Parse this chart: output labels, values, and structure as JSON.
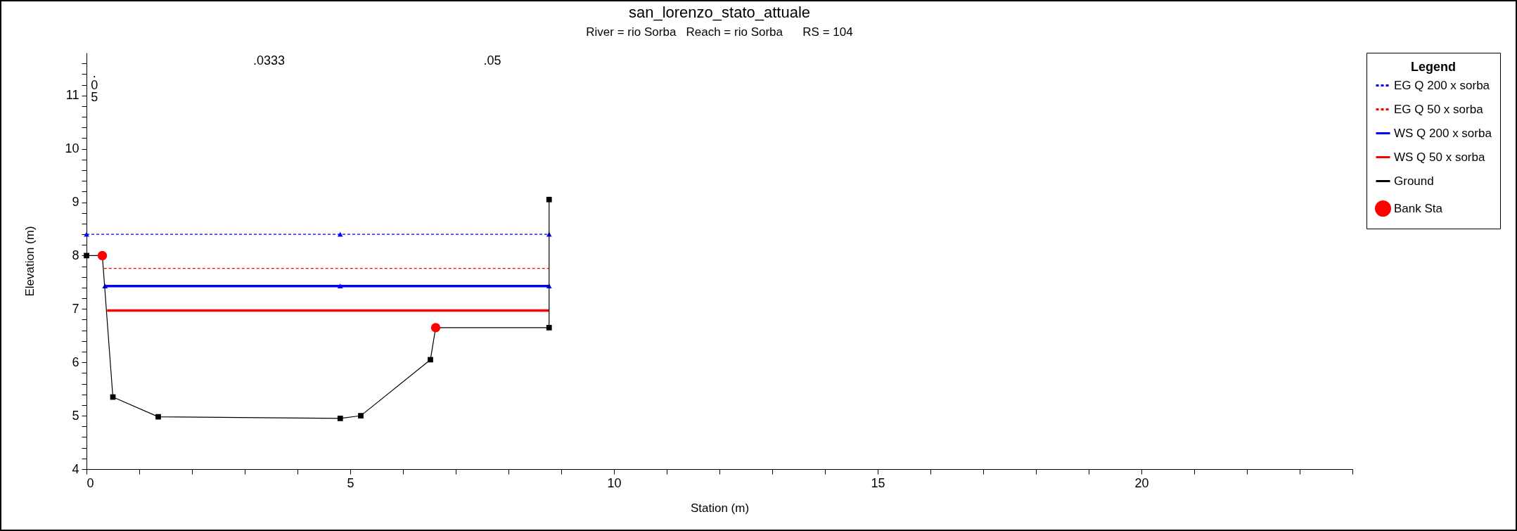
{
  "chart_data": {
    "type": "line",
    "title": "san_lorenzo_stato_attuale",
    "subtitle": "River = rio Sorba   Reach = rio Sorba      RS = 104",
    "xlabel": "Station (m)",
    "ylabel": "Elevation (m)",
    "legend_title": "Legend",
    "legend": "right",
    "grid": false,
    "xlim": [
      0,
      24
    ],
    "ylim": [
      4,
      11.8
    ],
    "xticks": [
      0,
      {
        "value": 1,
        "label": null
      },
      {
        "value": 2,
        "label": null
      },
      {
        "value": 3,
        "label": null
      },
      {
        "value": 4,
        "label": null
      },
      5,
      {
        "value": 6,
        "label": null
      },
      {
        "value": 7,
        "label": null
      },
      {
        "value": 8,
        "label": null
      },
      {
        "value": 9,
        "label": null
      },
      10,
      {
        "value": 11,
        "label": null
      },
      {
        "value": 12,
        "label": null
      },
      {
        "value": 13,
        "label": null
      },
      {
        "value": 14,
        "label": null
      },
      15,
      {
        "value": 16,
        "label": null
      },
      {
        "value": 17,
        "label": null
      },
      {
        "value": 18,
        "label": null
      },
      {
        "value": 19,
        "label": null
      },
      20,
      {
        "value": 21,
        "label": null
      },
      {
        "value": 22,
        "label": null
      },
      {
        "value": 23,
        "label": null
      },
      {
        "value": 24,
        "label": null
      }
    ],
    "yticks": [
      4,
      {
        "value": 4.2,
        "label": null
      },
      {
        "value": 4.4,
        "label": null
      },
      {
        "value": 4.6,
        "label": null
      },
      {
        "value": 4.8,
        "label": null
      },
      5,
      {
        "value": 5.2,
        "label": null
      },
      {
        "value": 5.4,
        "label": null
      },
      {
        "value": 5.6,
        "label": null
      },
      {
        "value": 5.8,
        "label": null
      },
      6,
      {
        "value": 6.2,
        "label": null
      },
      {
        "value": 6.4,
        "label": null
      },
      {
        "value": 6.6,
        "label": null
      },
      {
        "value": 6.8,
        "label": null
      },
      7,
      {
        "value": 7.2,
        "label": null
      },
      {
        "value": 7.4,
        "label": null
      },
      {
        "value": 7.6,
        "label": null
      },
      {
        "value": 7.8,
        "label": null
      },
      8,
      {
        "value": 8.2,
        "label": null
      },
      {
        "value": 8.4,
        "label": null
      },
      {
        "value": 8.6,
        "label": null
      },
      {
        "value": 8.8,
        "label": null
      },
      9,
      {
        "value": 9.2,
        "label": null
      },
      {
        "value": 9.4,
        "label": null
      },
      {
        "value": 9.6,
        "label": null
      },
      {
        "value": 9.8,
        "label": null
      },
      10,
      {
        "value": 10.2,
        "label": null
      },
      {
        "value": 10.4,
        "label": null
      },
      {
        "value": 10.6,
        "label": null
      },
      {
        "value": 10.8,
        "label": null
      },
      11,
      {
        "value": 11.2,
        "label": null
      },
      {
        "value": 11.4,
        "label": null
      },
      {
        "value": 11.6,
        "label": null
      }
    ],
    "series": [
      {
        "name": "EG Q 200 x sorba",
        "color": "#0000ff",
        "type": "line",
        "line_style": "dashed",
        "marker": "triangle",
        "x": [
          0,
          4.81,
          8.77
        ],
        "values": [
          8.4,
          8.4,
          8.4
        ]
      },
      {
        "name": "EG Q 50 x sorba",
        "color": "#ff0000",
        "type": "line",
        "line_style": "dashed",
        "marker": "none",
        "x": [
          0.33,
          8.77
        ],
        "values": [
          7.76,
          7.76
        ]
      },
      {
        "name": "WS Q 200 x sorba",
        "color": "#0000ff",
        "type": "line",
        "line_style": "solid",
        "marker": "triangle",
        "x": [
          0.35,
          4.81,
          8.77
        ],
        "values": [
          7.43,
          7.43,
          7.43
        ]
      },
      {
        "name": "WS Q 50 x sorba",
        "color": "#ff0000",
        "type": "line",
        "line_style": "solid",
        "marker": "none",
        "x": [
          0.39,
          8.77
        ],
        "values": [
          6.97,
          6.97
        ]
      },
      {
        "name": "Ground",
        "color": "#000000",
        "type": "line",
        "line_style": "solid",
        "marker": "square",
        "x": [
          0,
          0.3,
          0.5,
          1.36,
          4.81,
          5.2,
          6.52,
          6.62,
          8.77,
          8.77
        ],
        "values": [
          8,
          8,
          5.35,
          4.98,
          4.95,
          5.0,
          6.05,
          6.65,
          6.65,
          9.05
        ]
      },
      {
        "name": "Bank Sta",
        "color": "#ff0000",
        "type": "scatter",
        "marker": "circle",
        "x": [
          0.3,
          6.62
        ],
        "values": [
          8.0,
          6.65
        ]
      }
    ],
    "annotations": [
      ".05",
      ".0333",
      ".05"
    ]
  }
}
